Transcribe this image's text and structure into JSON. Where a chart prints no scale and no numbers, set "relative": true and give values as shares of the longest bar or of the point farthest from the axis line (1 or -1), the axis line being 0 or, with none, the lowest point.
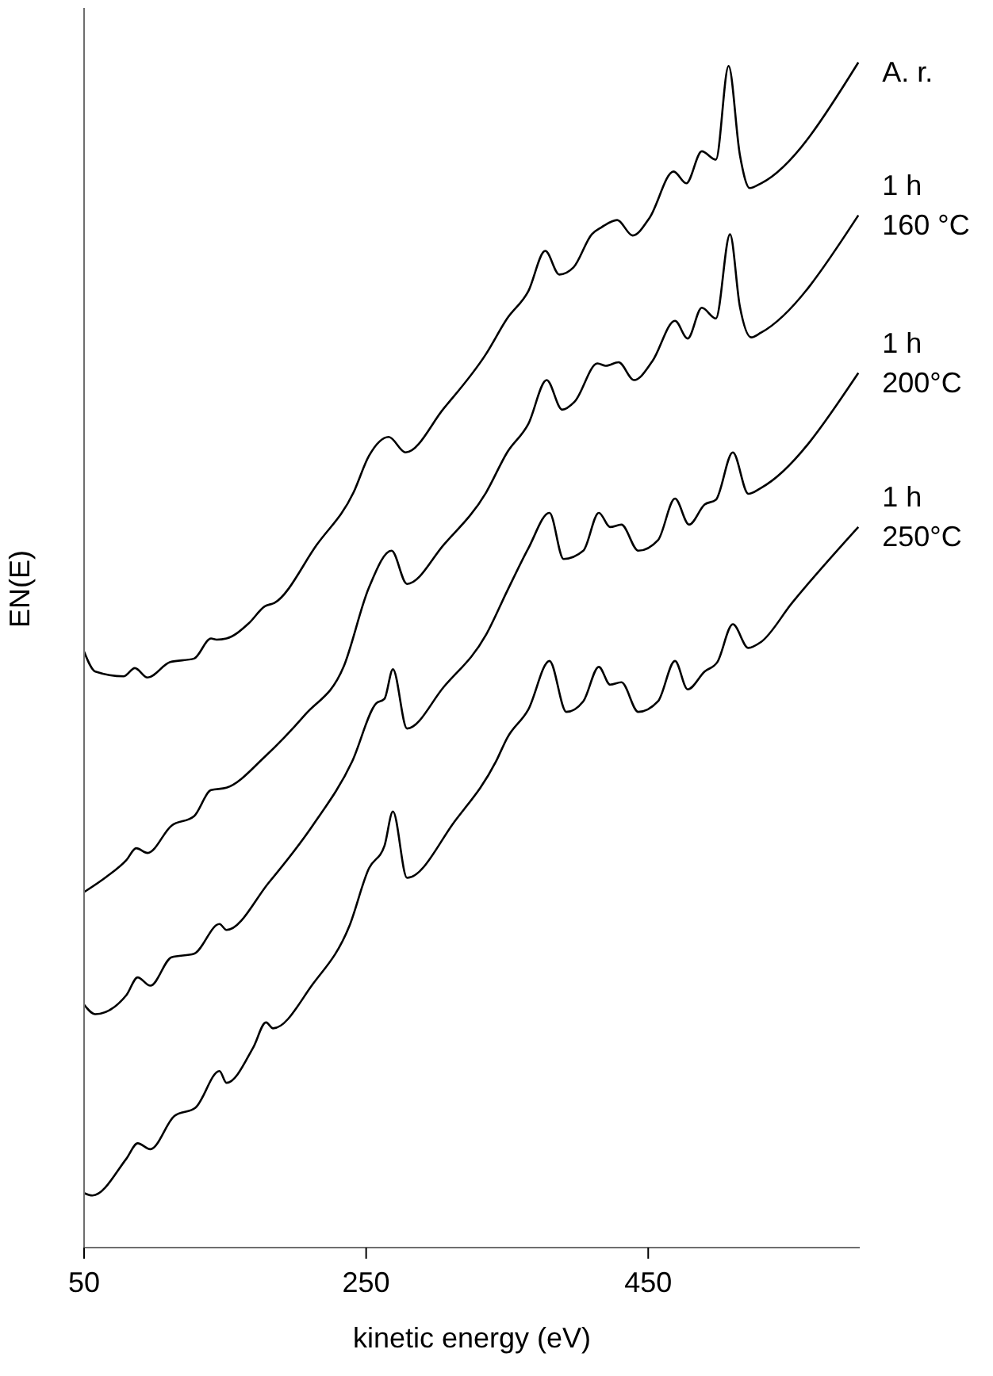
{
  "chart_data": {
    "type": "line",
    "xlabel": "kinetic energy (eV)",
    "ylabel": "EN(E)",
    "relative": true,
    "xlim": [
      50,
      600
    ],
    "xticks": [
      50,
      250,
      450
    ],
    "series": [
      {
        "name": "A. r.",
        "color": "#000000",
        "x": [
          50,
          58,
          78,
          86,
          95,
          111,
          128,
          140,
          144,
          151,
          167,
          178,
          185,
          215,
          241,
          252,
          266,
          278,
          305,
          335,
          350,
          365,
          377,
          387,
          397,
          410,
          417,
          428,
          439,
          451,
          468,
          477,
          488,
          498,
          507,
          515,
          522,
          530,
          599
        ],
        "values": [
          0.503,
          0.486,
          0.482,
          0.489,
          0.481,
          0.494,
          0.497,
          0.514,
          0.513,
          0.514,
          0.527,
          0.541,
          0.544,
          0.593,
          0.637,
          0.668,
          0.684,
          0.671,
          0.708,
          0.754,
          0.784,
          0.807,
          0.841,
          0.821,
          0.827,
          0.855,
          0.861,
          0.867,
          0.854,
          0.869,
          0.908,
          0.898,
          0.925,
          0.918,
          0.997,
          0.922,
          0.894,
          0.898,
          1.0
        ]
      },
      {
        "name": "1 h\n160 °C",
        "color": "#000000",
        "x": [
          50,
          66,
          80,
          87,
          95,
          112,
          128,
          140,
          151,
          178,
          207,
          234,
          252,
          268,
          279,
          305,
          335,
          350,
          365,
          378,
          389,
          398,
          414,
          420,
          429,
          440,
          453,
          469,
          478,
          488,
          498,
          508,
          515,
          523,
          530,
          599
        ],
        "values": [
          0.3,
          0.313,
          0.327,
          0.337,
          0.333,
          0.356,
          0.364,
          0.386,
          0.388,
          0.414,
          0.45,
          0.49,
          0.557,
          0.588,
          0.56,
          0.593,
          0.637,
          0.671,
          0.695,
          0.732,
          0.707,
          0.714,
          0.746,
          0.744,
          0.747,
          0.732,
          0.748,
          0.782,
          0.767,
          0.793,
          0.784,
          0.855,
          0.794,
          0.768,
          0.772,
          0.871
        ]
      },
      {
        "name": "1 h\n200°C",
        "color": "#000000",
        "x": [
          50,
          58,
          80,
          88,
          97,
          112,
          128,
          146,
          151,
          181,
          212,
          240,
          257,
          263,
          269,
          279,
          305,
          335,
          350,
          365,
          380,
          390,
          404,
          415,
          423,
          431,
          443,
          457,
          469,
          479,
          490,
          498,
          510,
          521,
          530,
          599
        ],
        "values": [
          0.205,
          0.197,
          0.213,
          0.228,
          0.221,
          0.245,
          0.248,
          0.273,
          0.268,
          0.308,
          0.356,
          0.41,
          0.459,
          0.463,
          0.488,
          0.438,
          0.473,
          0.517,
          0.554,
          0.59,
          0.62,
          0.581,
          0.588,
          0.62,
          0.608,
          0.61,
          0.588,
          0.597,
          0.632,
          0.61,
          0.627,
          0.631,
          0.671,
          0.636,
          0.641,
          0.738
        ]
      },
      {
        "name": "1 h\n250°C",
        "color": "#000000",
        "x": [
          50,
          56,
          80,
          88,
          97,
          114,
          129,
          146,
          151,
          170,
          179,
          184,
          212,
          238,
          252,
          263,
          269,
          279,
          313,
          342,
          350,
          365,
          380,
          392,
          404,
          415,
          423,
          431,
          443,
          457,
          469,
          478,
          490,
          499,
          510,
          521,
          530,
          552,
          599
        ],
        "values": [
          0.046,
          0.044,
          0.075,
          0.088,
          0.083,
          0.111,
          0.118,
          0.149,
          0.139,
          0.169,
          0.19,
          0.185,
          0.222,
          0.271,
          0.32,
          0.339,
          0.368,
          0.312,
          0.36,
          0.41,
          0.43,
          0.454,
          0.495,
          0.452,
          0.461,
          0.49,
          0.475,
          0.477,
          0.452,
          0.461,
          0.495,
          0.471,
          0.486,
          0.494,
          0.526,
          0.506,
          0.511,
          0.544,
          0.608
        ]
      }
    ]
  }
}
